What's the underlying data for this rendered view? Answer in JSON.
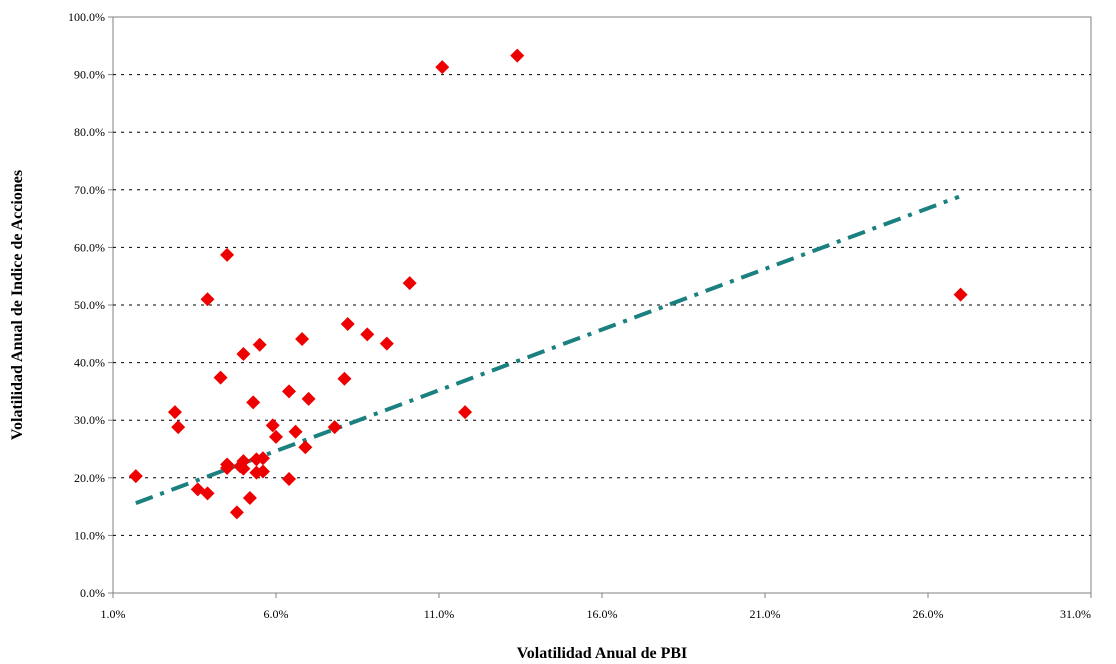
{
  "chart_data": {
    "type": "scatter",
    "xlabel": "Volatilidad Anual de PBI",
    "ylabel": "Volatilidad Anual de Indice de Acciones",
    "xlim": [
      0.01,
      0.31
    ],
    "ylim": [
      0.0,
      1.0
    ],
    "x_ticks": [
      0.01,
      0.06,
      0.11,
      0.16,
      0.21,
      0.26,
      0.31
    ],
    "y_ticks": [
      0.0,
      0.1,
      0.2,
      0.3,
      0.4,
      0.5,
      0.6,
      0.7,
      0.8,
      0.9,
      1.0
    ],
    "x_tick_labels": [
      "1.0%",
      "6.0%",
      "11.0%",
      "16.0%",
      "21.0%",
      "26.0%",
      "31.0%"
    ],
    "y_tick_labels": [
      "0.0%",
      "10.0%",
      "20.0%",
      "30.0%",
      "40.0%",
      "50.0%",
      "60.0%",
      "70.0%",
      "80.0%",
      "90.0%",
      "100.0%"
    ],
    "grid": {
      "horizontal": true,
      "style": "dotted"
    },
    "marker_color": "#ee0000",
    "marker_shape": "diamond",
    "trendline": {
      "x": [
        0.017,
        0.2695
      ],
      "y": [
        0.156,
        0.688
      ],
      "color": "#1b8080",
      "style": "dash-dot"
    },
    "points": [
      [
        0.017,
        0.203
      ],
      [
        0.029,
        0.314
      ],
      [
        0.03,
        0.288
      ],
      [
        0.036,
        0.18
      ],
      [
        0.039,
        0.51
      ],
      [
        0.039,
        0.173
      ],
      [
        0.043,
        0.374
      ],
      [
        0.045,
        0.587
      ],
      [
        0.045,
        0.223
      ],
      [
        0.045,
        0.217
      ],
      [
        0.049,
        0.22
      ],
      [
        0.05,
        0.229
      ],
      [
        0.05,
        0.216
      ],
      [
        0.05,
        0.415
      ],
      [
        0.048,
        0.14
      ],
      [
        0.052,
        0.165
      ],
      [
        0.053,
        0.331
      ],
      [
        0.054,
        0.232
      ],
      [
        0.054,
        0.209
      ],
      [
        0.055,
        0.431
      ],
      [
        0.056,
        0.234
      ],
      [
        0.056,
        0.211
      ],
      [
        0.059,
        0.291
      ],
      [
        0.06,
        0.271
      ],
      [
        0.064,
        0.35
      ],
      [
        0.064,
        0.198
      ],
      [
        0.066,
        0.28
      ],
      [
        0.068,
        0.441
      ],
      [
        0.069,
        0.253
      ],
      [
        0.07,
        0.337
      ],
      [
        0.078,
        0.288
      ],
      [
        0.081,
        0.372
      ],
      [
        0.082,
        0.467
      ],
      [
        0.088,
        0.449
      ],
      [
        0.094,
        0.433
      ],
      [
        0.101,
        0.538
      ],
      [
        0.111,
        0.913
      ],
      [
        0.118,
        0.314
      ],
      [
        0.134,
        0.933
      ],
      [
        0.27,
        0.518
      ]
    ]
  }
}
